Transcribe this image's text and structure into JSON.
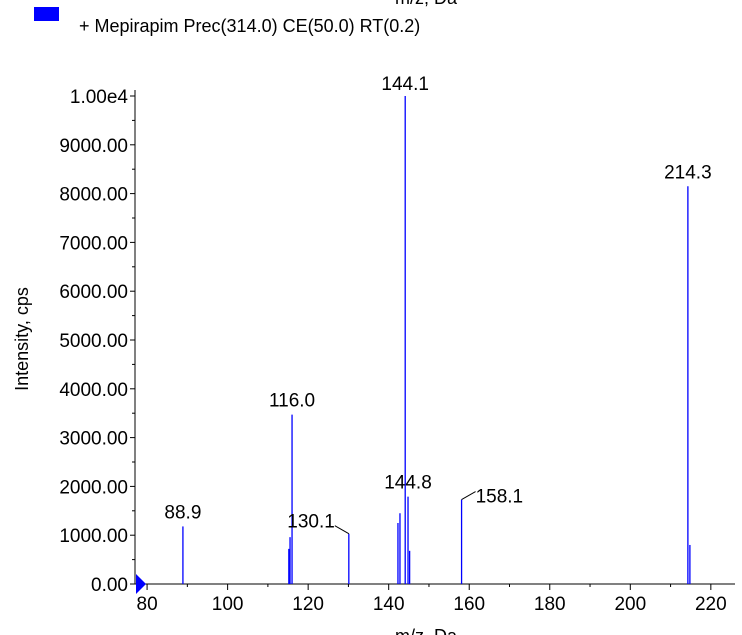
{
  "legend": {
    "swatch_color": "#0000ff",
    "label": "+ Mepirapim Prec(314.0) CE(50.0) RT(0.2)"
  },
  "chart_data": {
    "type": "bar",
    "title": "",
    "xlabel": "m/z, Da",
    "ylabel": "Intensity, cps",
    "xlim": [
      77,
      226
    ],
    "ylim": [
      0,
      10000
    ],
    "x_ticks": [
      80,
      100,
      120,
      140,
      160,
      180,
      200,
      220
    ],
    "x_tick_labels": [
      "80",
      "100",
      "120",
      "140",
      "160",
      "180",
      "200",
      "220"
    ],
    "y_ticks": [
      0,
      1000,
      2000,
      3000,
      4000,
      5000,
      6000,
      7000,
      8000,
      9000,
      10000
    ],
    "y_tick_labels": [
      "0.00",
      "1000.00",
      "2000.00",
      "3000.00",
      "4000.00",
      "5000.00",
      "6000.00",
      "7000.00",
      "8000.00",
      "9000.00",
      "1.00e4"
    ],
    "series_color": "#0000ff",
    "peaks": [
      {
        "mz": 88.9,
        "intensity": 1180
      },
      {
        "mz": 115.2,
        "intensity": 720
      },
      {
        "mz": 115.5,
        "intensity": 960
      },
      {
        "mz": 116.0,
        "intensity": 3470
      },
      {
        "mz": 130.1,
        "intensity": 1030
      },
      {
        "mz": 142.3,
        "intensity": 1250
      },
      {
        "mz": 142.8,
        "intensity": 1450
      },
      {
        "mz": 144.1,
        "intensity": 10000
      },
      {
        "mz": 144.8,
        "intensity": 1790
      },
      {
        "mz": 145.2,
        "intensity": 680
      },
      {
        "mz": 158.1,
        "intensity": 1730
      },
      {
        "mz": 214.3,
        "intensity": 8150
      },
      {
        "mz": 214.8,
        "intensity": 800
      }
    ],
    "annotations": [
      {
        "text": "88.9",
        "mz": 88.9
      },
      {
        "text": "116.0",
        "mz": 116.0
      },
      {
        "text": "130.1",
        "mz": 130.1
      },
      {
        "text": "144.1",
        "mz": 144.1
      },
      {
        "text": "144.8",
        "mz": 144.8
      },
      {
        "text": "158.1",
        "mz": 158.1
      },
      {
        "text": "214.3",
        "mz": 214.3
      }
    ],
    "precursor_marker": {
      "shape": "triangle",
      "color": "#0000ff",
      "mz": 77
    }
  }
}
